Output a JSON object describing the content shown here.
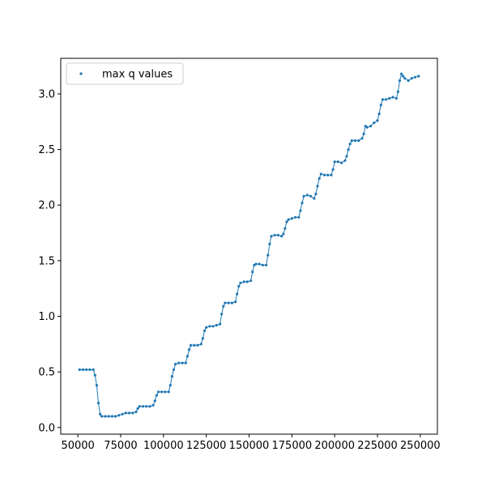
{
  "chart_data": {
    "type": "scatter",
    "title": "",
    "xlabel": "",
    "ylabel": "",
    "xlim": [
      40000,
      260000
    ],
    "ylim": [
      -0.06,
      3.32
    ],
    "x_ticks": [
      50000,
      75000,
      100000,
      125000,
      150000,
      175000,
      200000,
      225000,
      250000
    ],
    "x_tick_labels": [
      "50000",
      "75000",
      "100000",
      "125000",
      "150000",
      "175000",
      "200000",
      "225000",
      "250000"
    ],
    "y_ticks": [
      0.0,
      0.5,
      1.0,
      1.5,
      2.0,
      2.5,
      3.0
    ],
    "y_tick_labels": [
      "0.0",
      "0.5",
      "1.0",
      "1.5",
      "2.0",
      "2.5",
      "3.0"
    ],
    "grid": false,
    "legend_position": "upper-left",
    "color": "#1f77b4",
    "series": [
      {
        "name": "max q values",
        "points": [
          [
            51000,
            0.52
          ],
          [
            53000,
            0.52
          ],
          [
            55000,
            0.52
          ],
          [
            57000,
            0.52
          ],
          [
            59000,
            0.52
          ],
          [
            60000,
            0.47
          ],
          [
            61000,
            0.38
          ],
          [
            62000,
            0.22
          ],
          [
            63000,
            0.12
          ],
          [
            64000,
            0.1
          ],
          [
            66000,
            0.1
          ],
          [
            68000,
            0.1
          ],
          [
            70000,
            0.1
          ],
          [
            72000,
            0.1
          ],
          [
            74000,
            0.11
          ],
          [
            76000,
            0.12
          ],
          [
            78000,
            0.13
          ],
          [
            80000,
            0.13
          ],
          [
            82000,
            0.13
          ],
          [
            84000,
            0.14
          ],
          [
            85000,
            0.17
          ],
          [
            86000,
            0.19
          ],
          [
            88000,
            0.19
          ],
          [
            90000,
            0.19
          ],
          [
            92000,
            0.19
          ],
          [
            94000,
            0.2
          ],
          [
            95000,
            0.24
          ],
          [
            96000,
            0.29
          ],
          [
            97000,
            0.32
          ],
          [
            99000,
            0.32
          ],
          [
            101000,
            0.32
          ],
          [
            103000,
            0.32
          ],
          [
            104000,
            0.38
          ],
          [
            105000,
            0.46
          ],
          [
            106000,
            0.52
          ],
          [
            107000,
            0.57
          ],
          [
            109000,
            0.58
          ],
          [
            111000,
            0.58
          ],
          [
            113000,
            0.58
          ],
          [
            114000,
            0.64
          ],
          [
            115000,
            0.7
          ],
          [
            116000,
            0.74
          ],
          [
            118000,
            0.74
          ],
          [
            120000,
            0.74
          ],
          [
            122000,
            0.75
          ],
          [
            123000,
            0.8
          ],
          [
            124000,
            0.87
          ],
          [
            125000,
            0.9
          ],
          [
            127000,
            0.91
          ],
          [
            129000,
            0.91
          ],
          [
            131000,
            0.92
          ],
          [
            133000,
            0.93
          ],
          [
            134000,
            1.02
          ],
          [
            135000,
            1.09
          ],
          [
            136000,
            1.12
          ],
          [
            138000,
            1.12
          ],
          [
            140000,
            1.12
          ],
          [
            142000,
            1.13
          ],
          [
            143000,
            1.2
          ],
          [
            144000,
            1.27
          ],
          [
            145000,
            1.3
          ],
          [
            147000,
            1.31
          ],
          [
            149000,
            1.31
          ],
          [
            151000,
            1.32
          ],
          [
            152000,
            1.4
          ],
          [
            153000,
            1.46
          ],
          [
            154000,
            1.47
          ],
          [
            156000,
            1.47
          ],
          [
            158000,
            1.46
          ],
          [
            160000,
            1.46
          ],
          [
            161000,
            1.55
          ],
          [
            162000,
            1.65
          ],
          [
            163000,
            1.72
          ],
          [
            165000,
            1.73
          ],
          [
            167000,
            1.73
          ],
          [
            169000,
            1.72
          ],
          [
            170000,
            1.74
          ],
          [
            171000,
            1.79
          ],
          [
            172000,
            1.85
          ],
          [
            173000,
            1.87
          ],
          [
            175000,
            1.88
          ],
          [
            177000,
            1.89
          ],
          [
            179000,
            1.89
          ],
          [
            180000,
            1.95
          ],
          [
            181000,
            2.02
          ],
          [
            182000,
            2.08
          ],
          [
            184000,
            2.09
          ],
          [
            186000,
            2.08
          ],
          [
            188000,
            2.06
          ],
          [
            189000,
            2.1
          ],
          [
            190000,
            2.17
          ],
          [
            191000,
            2.24
          ],
          [
            192000,
            2.28
          ],
          [
            194000,
            2.27
          ],
          [
            196000,
            2.27
          ],
          [
            198000,
            2.27
          ],
          [
            199000,
            2.32
          ],
          [
            200000,
            2.39
          ],
          [
            202000,
            2.39
          ],
          [
            204000,
            2.38
          ],
          [
            206000,
            2.4
          ],
          [
            207000,
            2.44
          ],
          [
            208000,
            2.5
          ],
          [
            209000,
            2.55
          ],
          [
            210000,
            2.58
          ],
          [
            212000,
            2.58
          ],
          [
            214000,
            2.58
          ],
          [
            216000,
            2.6
          ],
          [
            217000,
            2.64
          ],
          [
            218000,
            2.71
          ],
          [
            219000,
            2.7
          ],
          [
            221000,
            2.71
          ],
          [
            223000,
            2.74
          ],
          [
            225000,
            2.76
          ],
          [
            226000,
            2.82
          ],
          [
            227000,
            2.9
          ],
          [
            228000,
            2.95
          ],
          [
            230000,
            2.95
          ],
          [
            232000,
            2.96
          ],
          [
            234000,
            2.97
          ],
          [
            236000,
            2.96
          ],
          [
            237000,
            3.02
          ],
          [
            238000,
            3.12
          ],
          [
            239000,
            3.18
          ],
          [
            240000,
            3.16
          ],
          [
            241000,
            3.14
          ],
          [
            243000,
            3.12
          ],
          [
            245000,
            3.14
          ],
          [
            247000,
            3.15
          ],
          [
            249000,
            3.16
          ]
        ]
      }
    ]
  }
}
